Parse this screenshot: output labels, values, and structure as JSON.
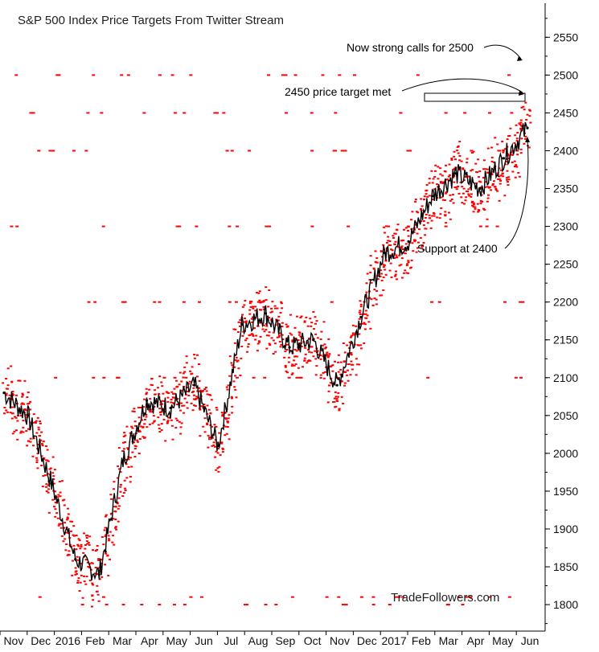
{
  "chart_data": {
    "type": "line",
    "title": "S&P 500 Index Price Targets From Twitter Stream",
    "watermark": "TradeFollowers.com",
    "ylim": [
      1765,
      2595
    ],
    "y_ticks": [
      1800,
      1850,
      1900,
      1950,
      2000,
      2050,
      2100,
      2150,
      2200,
      2250,
      2300,
      2350,
      2400,
      2450,
      2500,
      2550
    ],
    "x_tick_labels": [
      "Nov",
      "Dec",
      "2016",
      "Feb",
      "Mar",
      "Apr",
      "May",
      "Jun",
      "Jul",
      "Aug",
      "Sep",
      "Oct",
      "Nov",
      "Dec",
      "2017",
      "Feb",
      "Mar",
      "Apr",
      "May",
      "Jun"
    ],
    "grid": false,
    "legend": "none",
    "colors": {
      "price": "#000000",
      "targets": "#ff0000",
      "annotation_box": "#000000"
    },
    "series": [
      {
        "name": "",
        "x": [
          "2015-11",
          "2015-12",
          "2016-01",
          "2016-02a",
          "2016-02b",
          "2016-03",
          "2016-04",
          "2016-05",
          "2016-06a",
          "2016-06b",
          "2016-07",
          "2016-08",
          "2016-09",
          "2016-10",
          "2016-11a",
          "2016-11b",
          "2016-12",
          "2017-01",
          "2017-02",
          "2017-03",
          "2017-04",
          "2017-05",
          "2017-06"
        ],
        "values": [
          2080,
          2050,
          1960,
          1860,
          1840,
          1990,
          2070,
          2060,
          2090,
          2010,
          2170,
          2185,
          2140,
          2150,
          2090,
          2180,
          2265,
          2280,
          2340,
          2370,
          2350,
          2390,
          2430
        ]
      }
    ],
    "price_targets": [
      2500,
      2450,
      2400,
      2300,
      2200,
      2100,
      1810,
      1800
    ],
    "annotations": [
      {
        "text": "Now strong calls for 2500",
        "target": 2500
      },
      {
        "text": "2450 price target met",
        "target": 2450
      },
      {
        "text": "Support at 2400",
        "target": 2400
      }
    ]
  }
}
